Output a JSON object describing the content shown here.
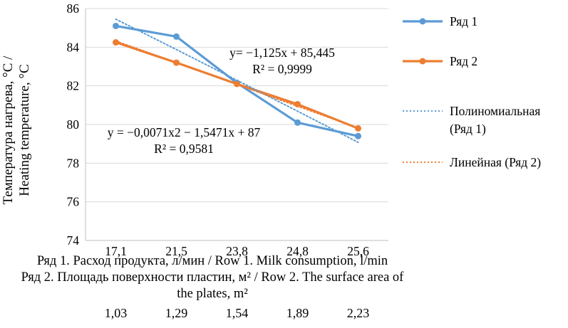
{
  "chart_data": {
    "type": "line",
    "title": "",
    "ylabel_lines": [
      "Температура  нагрева, °С /",
      "Heating temperature, °С"
    ],
    "ylim": [
      74,
      86
    ],
    "ytick_step": 2,
    "grid": true,
    "legend_position": "right",
    "categories": [
      "17,1",
      "21,5",
      "23,8",
      "24,8",
      "25,6"
    ],
    "x2_values": [
      "1,03",
      "1,29",
      "1,54",
      "1,89",
      "2,23"
    ],
    "xlabel_lines": [
      "Ряд 1. Расход продукта, л/мин / Row 1. Milk consumption, l/min",
      "Ряд 2. Площадь поверхности пластин, м² / Row 2. The surface area of",
      "the plates, m²"
    ],
    "series": [
      {
        "name": "Ряд 1",
        "color": "#5B9BD5",
        "style": "solid",
        "marker": true,
        "values": [
          85.1,
          84.55,
          82.15,
          80.1,
          79.4
        ]
      },
      {
        "name": "Ряд 2",
        "color": "#ED7D31",
        "style": "solid",
        "marker": true,
        "values": [
          84.25,
          83.2,
          82.1,
          81.05,
          79.8
        ]
      },
      {
        "name": "Полиномиальная (Ряд 1)",
        "color": "#5B9BD5",
        "style": "dotted",
        "marker": false,
        "values": [
          85.45,
          83.88,
          82.29,
          80.69,
          79.08
        ]
      },
      {
        "name": "Линейная (Ряд 2)",
        "color": "#ED7D31",
        "style": "dotted",
        "marker": false,
        "values": [
          84.32,
          83.2,
          82.07,
          80.95,
          79.82
        ]
      }
    ],
    "annotations": [
      {
        "lines": [
          "y= −1,125x + 85,445",
          "R² = 0,9999"
        ],
        "x": 350,
        "y": 80
      },
      {
        "lines": [
          "y = −0,0071x2 − 1,5471x + 87",
          "R² = 0,9581"
        ],
        "x": 212,
        "y": 192
      }
    ],
    "colors": {
      "grid": "#D9D9D9",
      "axis": "#BFBFBF",
      "text": "#000000"
    }
  },
  "legend": {
    "items": [
      {
        "label": "Ряд 1",
        "color": "#5B9BD5",
        "style": "solid",
        "marker": true
      },
      {
        "label": "Ряд 2",
        "color": "#ED7D31",
        "style": "solid",
        "marker": true
      },
      {
        "label": "Полиномиальная (Ряд 1)",
        "color": "#5B9BD5",
        "style": "dotted",
        "marker": false
      },
      {
        "label": "Линейная (Ряд 2)",
        "color": "#ED7D31",
        "style": "dotted",
        "marker": false
      }
    ]
  }
}
